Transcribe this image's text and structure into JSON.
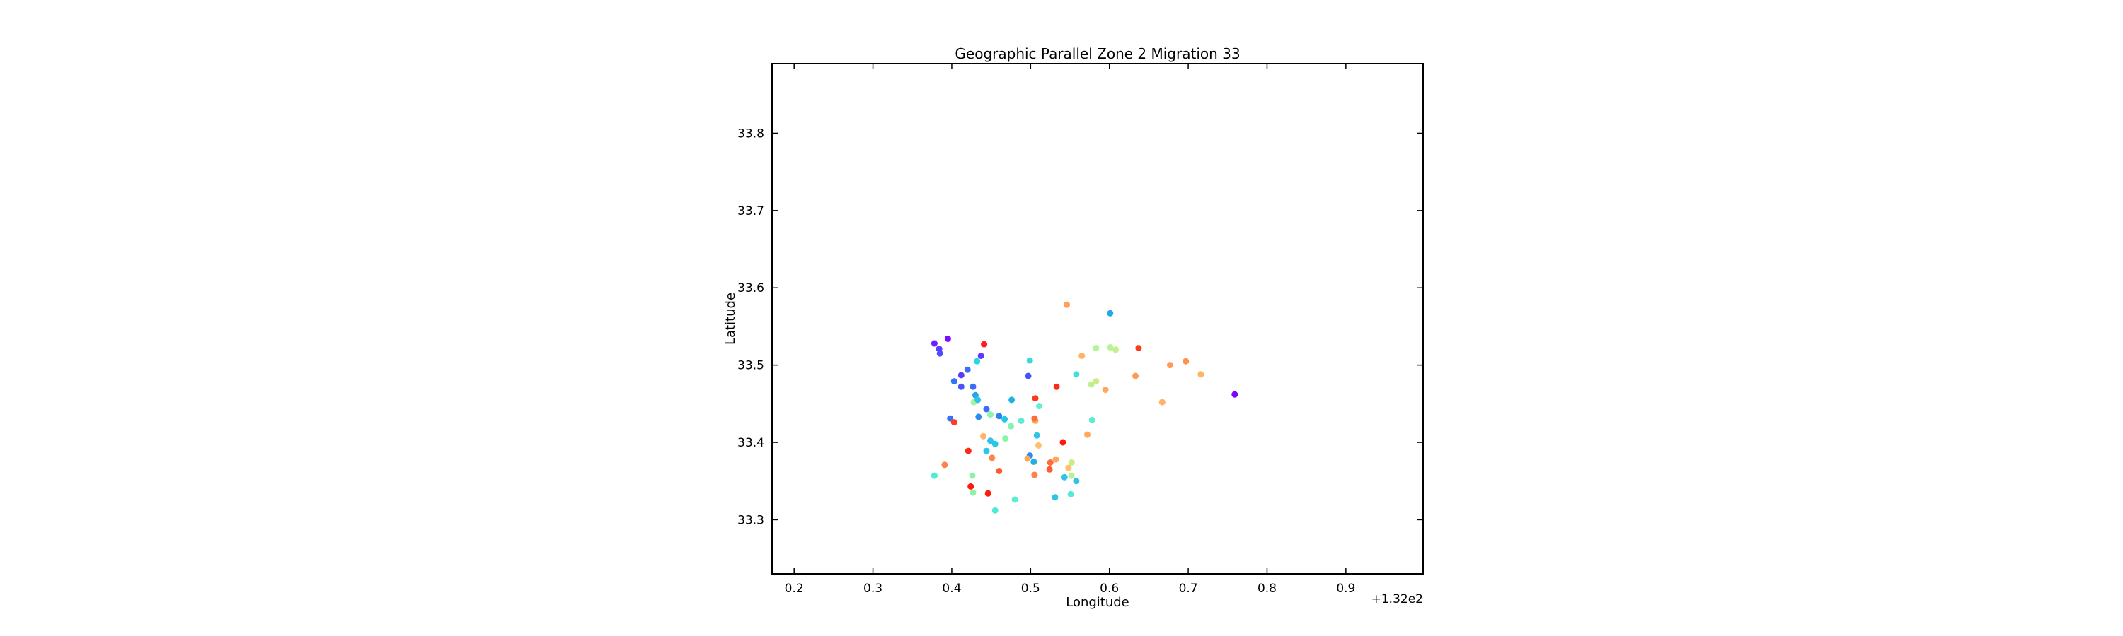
{
  "chart_data": {
    "type": "scatter",
    "title": "Geographic Parallel Zone 2 Migration 33",
    "xlabel": "Longitude",
    "ylabel": "Latitude",
    "x_offset_label": "+1.32e2",
    "xlim": [
      132.172,
      132.998
    ],
    "ylim": [
      33.23,
      33.89
    ],
    "x_ticks": [
      {
        "value": 132.2,
        "label": "0.2"
      },
      {
        "value": 132.3,
        "label": "0.3"
      },
      {
        "value": 132.4,
        "label": "0.4"
      },
      {
        "value": 132.5,
        "label": "0.5"
      },
      {
        "value": 132.6,
        "label": "0.6"
      },
      {
        "value": 132.7,
        "label": "0.7"
      },
      {
        "value": 132.8,
        "label": "0.8"
      },
      {
        "value": 132.9,
        "label": "0.9"
      }
    ],
    "y_ticks": [
      {
        "value": 33.3,
        "label": "33.3"
      },
      {
        "value": 33.4,
        "label": "33.4"
      },
      {
        "value": 33.5,
        "label": "33.5"
      },
      {
        "value": 33.6,
        "label": "33.6"
      },
      {
        "value": 33.7,
        "label": "33.7"
      },
      {
        "value": 33.8,
        "label": "33.8"
      }
    ],
    "grid": false,
    "legend": "none",
    "colormap": "rainbow",
    "points": [
      {
        "x": 132.378,
        "y": 33.528,
        "c": "#6a23ff"
      },
      {
        "x": 132.384,
        "y": 33.521,
        "c": "#5a3cfe"
      },
      {
        "x": 132.385,
        "y": 33.515,
        "c": "#4f4dfc"
      },
      {
        "x": 132.395,
        "y": 33.534,
        "c": "#7a0cff"
      },
      {
        "x": 132.437,
        "y": 33.512,
        "c": "#5e3aff"
      },
      {
        "x": 132.432,
        "y": 33.505,
        "c": "#29d6e3"
      },
      {
        "x": 132.441,
        "y": 33.527,
        "c": "#ff1f1f"
      },
      {
        "x": 132.42,
        "y": 33.494,
        "c": "#3c6cf9"
      },
      {
        "x": 132.412,
        "y": 33.487,
        "c": "#5b3cff"
      },
      {
        "x": 132.403,
        "y": 33.479,
        "c": "#3274f7"
      },
      {
        "x": 132.412,
        "y": 33.472,
        "c": "#4b52fd"
      },
      {
        "x": 132.427,
        "y": 33.472,
        "c": "#3d6af9"
      },
      {
        "x": 132.43,
        "y": 33.461,
        "c": "#2aa3ee"
      },
      {
        "x": 132.428,
        "y": 33.452,
        "c": "#a6f39a"
      },
      {
        "x": 132.433,
        "y": 33.455,
        "c": "#2ec3e8"
      },
      {
        "x": 132.444,
        "y": 33.443,
        "c": "#3d6af9"
      },
      {
        "x": 132.398,
        "y": 33.431,
        "c": "#3a6ffa"
      },
      {
        "x": 132.403,
        "y": 33.426,
        "c": "#ff3d1f"
      },
      {
        "x": 132.434,
        "y": 33.433,
        "c": "#2a8cf0"
      },
      {
        "x": 132.46,
        "y": 33.434,
        "c": "#2a82f2"
      },
      {
        "x": 132.467,
        "y": 33.43,
        "c": "#26c5e6"
      },
      {
        "x": 132.476,
        "y": 33.455,
        "c": "#1fb0e8"
      },
      {
        "x": 132.497,
        "y": 33.486,
        "c": "#4452fc"
      },
      {
        "x": 132.499,
        "y": 33.506,
        "c": "#3ad9d9"
      },
      {
        "x": 132.506,
        "y": 33.457,
        "c": "#ff3a1a"
      },
      {
        "x": 132.511,
        "y": 33.447,
        "c": "#5eeed0"
      },
      {
        "x": 132.533,
        "y": 33.472,
        "c": "#ff2a15"
      },
      {
        "x": 132.546,
        "y": 33.578,
        "c": "#ff9f5a"
      },
      {
        "x": 132.558,
        "y": 33.488,
        "c": "#3fe0d8"
      },
      {
        "x": 132.565,
        "y": 33.512,
        "c": "#ffb366"
      },
      {
        "x": 132.583,
        "y": 33.522,
        "c": "#b2f597"
      },
      {
        "x": 132.601,
        "y": 33.567,
        "c": "#1fa8ea"
      },
      {
        "x": 132.601,
        "y": 33.523,
        "c": "#b8f293"
      },
      {
        "x": 132.608,
        "y": 33.52,
        "c": "#c5ef8c"
      },
      {
        "x": 132.637,
        "y": 33.522,
        "c": "#ff3a1a"
      },
      {
        "x": 132.577,
        "y": 33.475,
        "c": "#c0ef90"
      },
      {
        "x": 132.583,
        "y": 33.479,
        "c": "#ccec88"
      },
      {
        "x": 132.595,
        "y": 33.468,
        "c": "#ffa85c"
      },
      {
        "x": 132.633,
        "y": 33.486,
        "c": "#ff9a55"
      },
      {
        "x": 132.677,
        "y": 33.5,
        "c": "#ff9a55"
      },
      {
        "x": 132.697,
        "y": 33.505,
        "c": "#ff9050"
      },
      {
        "x": 132.716,
        "y": 33.488,
        "c": "#ffb366"
      },
      {
        "x": 132.667,
        "y": 33.452,
        "c": "#ffb366"
      },
      {
        "x": 132.759,
        "y": 33.462,
        "c": "#8000ff"
      },
      {
        "x": 132.578,
        "y": 33.429,
        "c": "#5cedd1"
      },
      {
        "x": 132.572,
        "y": 33.41,
        "c": "#ffa85c"
      },
      {
        "x": 132.541,
        "y": 33.4,
        "c": "#ff1a0d"
      },
      {
        "x": 132.449,
        "y": 33.436,
        "c": "#88f5ae"
      },
      {
        "x": 132.449,
        "y": 33.402,
        "c": "#2ec3e8"
      },
      {
        "x": 132.44,
        "y": 33.408,
        "c": "#ffb366"
      },
      {
        "x": 132.455,
        "y": 33.398,
        "c": "#27c8e5"
      },
      {
        "x": 132.468,
        "y": 33.405,
        "c": "#8ef3a8"
      },
      {
        "x": 132.475,
        "y": 33.421,
        "c": "#7ef6b3"
      },
      {
        "x": 132.488,
        "y": 33.428,
        "c": "#5eeecf"
      },
      {
        "x": 132.506,
        "y": 33.428,
        "c": "#ffa85c"
      },
      {
        "x": 132.505,
        "y": 33.431,
        "c": "#ff6e3a"
      },
      {
        "x": 132.508,
        "y": 33.409,
        "c": "#2ec3e8"
      },
      {
        "x": 132.51,
        "y": 33.396,
        "c": "#ffc070"
      },
      {
        "x": 132.421,
        "y": 33.389,
        "c": "#ff2a15"
      },
      {
        "x": 132.444,
        "y": 33.389,
        "c": "#2ec3e8"
      },
      {
        "x": 132.451,
        "y": 33.38,
        "c": "#ff8246"
      },
      {
        "x": 132.499,
        "y": 33.383,
        "c": "#2a8cf0"
      },
      {
        "x": 132.496,
        "y": 33.379,
        "c": "#ffa85c"
      },
      {
        "x": 132.504,
        "y": 33.375,
        "c": "#1fb0e8"
      },
      {
        "x": 132.525,
        "y": 33.374,
        "c": "#ff6e3a"
      },
      {
        "x": 132.532,
        "y": 33.378,
        "c": "#ffa85c"
      },
      {
        "x": 132.524,
        "y": 33.365,
        "c": "#ff5a30"
      },
      {
        "x": 132.548,
        "y": 33.367,
        "c": "#ffc070"
      },
      {
        "x": 132.552,
        "y": 33.374,
        "c": "#ccec88"
      },
      {
        "x": 132.391,
        "y": 33.371,
        "c": "#ff8246"
      },
      {
        "x": 132.378,
        "y": 33.357,
        "c": "#52ebd5"
      },
      {
        "x": 132.426,
        "y": 33.357,
        "c": "#8ef3a8"
      },
      {
        "x": 132.46,
        "y": 33.363,
        "c": "#ff5a30"
      },
      {
        "x": 132.505,
        "y": 33.358,
        "c": "#ff8246"
      },
      {
        "x": 132.543,
        "y": 33.355,
        "c": "#2ec3e8"
      },
      {
        "x": 132.552,
        "y": 33.357,
        "c": "#b8f293"
      },
      {
        "x": 132.558,
        "y": 33.35,
        "c": "#2ec3e8"
      },
      {
        "x": 132.424,
        "y": 33.343,
        "c": "#ff1a0d"
      },
      {
        "x": 132.427,
        "y": 33.335,
        "c": "#8ef3a8"
      },
      {
        "x": 132.446,
        "y": 33.334,
        "c": "#ff1a0d"
      },
      {
        "x": 132.48,
        "y": 33.326,
        "c": "#5eeecf"
      },
      {
        "x": 132.531,
        "y": 33.329,
        "c": "#2ec3e8"
      },
      {
        "x": 132.551,
        "y": 33.333,
        "c": "#52ebd5"
      },
      {
        "x": 132.455,
        "y": 33.312,
        "c": "#52ebd5"
      }
    ]
  }
}
